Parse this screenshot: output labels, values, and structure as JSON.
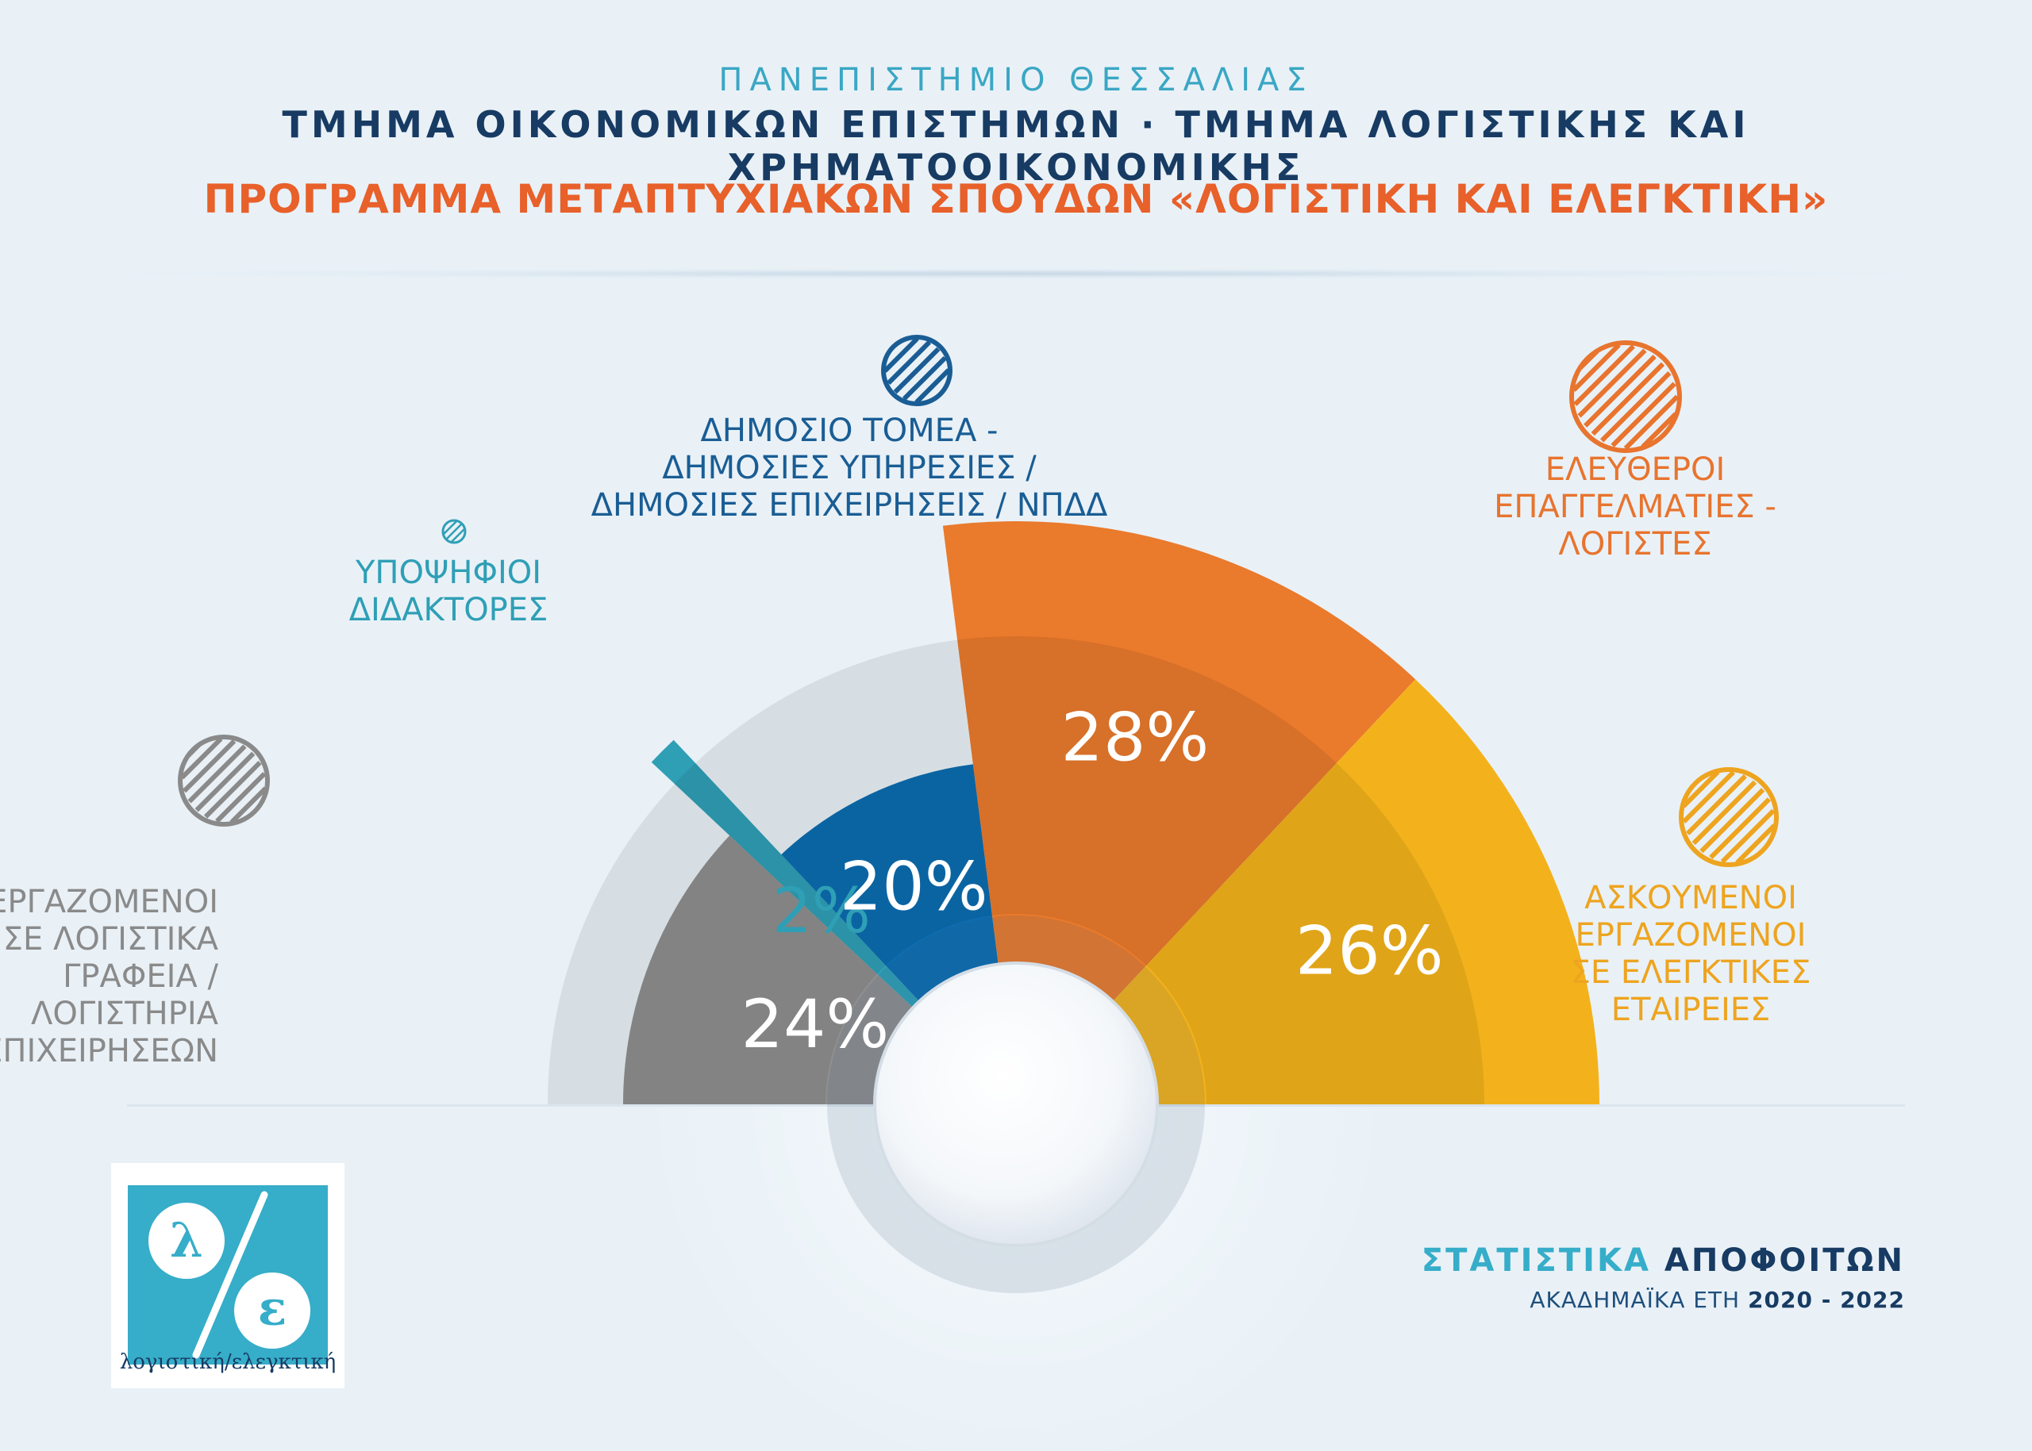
{
  "header": {
    "university": "ΠΑΝΕΠΙΣΤΗΜΙΟ ΘΕΣΣΑΛΙΑΣ",
    "departments": "ΤΜΗΜΑ ΟΙΚΟΝΟΜΙΚΩΝ ΕΠΙΣΤΗΜΩΝ · ΤΜΗΜΑ ΛΟΓΙΣΤΙΚΗΣ ΚΑΙ ΧΡΗΜΑΤΟΟΙΚΟΝΟΜΙΚΗΣ",
    "program": "ΠΡΟΓΡΑΜΜΑ ΜΕΤΑΠΤΥΧΙΑΚΩΝ ΣΠΟΥΔΩΝ «ΛΟΓΙΣΤΙΚΗ ΚΑΙ ΕΛΕΓΚΤΙΚΗ»"
  },
  "chart_data": {
    "type": "pie",
    "layout": "semicircle",
    "unit": "%",
    "slices": [
      {
        "label": [
          "ΕΡΓΑΖΟΜΕΝΟΙ",
          "ΣΕ ΛΟΓΙΣΤΙΚΑ",
          "ΓΡΑΦΕΙΑ /",
          "ΛΟΓΙΣΤΗΡΙΑ",
          "ΕΠΙΧΕΙΡΗΣΕΩΝ"
        ],
        "value": 24,
        "value_label": "24%",
        "color": "#8f8f8f",
        "label_color": "#8a8a8a"
      },
      {
        "label": [
          "ΥΠΟΨΗΦΙΟΙ",
          "ΔΙΔΑΚΤΟΡΕΣ"
        ],
        "value": 2,
        "value_label": "2%",
        "color": "#2f9fb6",
        "label_color": "#2f9fb6"
      },
      {
        "label": [
          "ΔΗΜΟΣΙΟ ΤΟΜΕΑ -",
          "ΔΗΜΟΣΙΕΣ ΥΠΗΡΕΣΙΕΣ /",
          "ΔΗΜΟΣΙΕΣ ΕΠΙΧΕΙΡΗΣΕΙΣ / ΝΠΔΔ"
        ],
        "value": 20,
        "value_label": "20%",
        "color": "#0d6db0",
        "label_color": "#1a5d94"
      },
      {
        "label": [
          "ΕΛΕΥΘΕΡΟΙ",
          "ΕΠΑΓΓΕΛΜΑΤΙΕΣ -",
          "ΛΟΓΙΣΤΕΣ"
        ],
        "value": 28,
        "value_label": "28%",
        "color": "#ea7a2c",
        "label_color": "#e8742e"
      },
      {
        "label": [
          "ΑΣΚΟΥΜΕΝΟΙ",
          "ΕΡΓΑΖΟΜΕΝΟΙ",
          "ΣΕ ΕΛΕΓΚΤΙΚΕΣ",
          "ΕΤΑΙΡΕΙΕΣ"
        ],
        "value": 26,
        "value_label": "26%",
        "color": "#f3b21c",
        "label_color": "#eea41f"
      }
    ]
  },
  "logo": {
    "letter_left": "λ",
    "letter_right": "ε",
    "tagline": "λογιστική/ελεγκτική"
  },
  "footer": {
    "title_part1": "ΣΤΑΤΙΣΤΙΚΑ",
    "title_part2": "ΑΠΟΦΟΙΤΩΝ",
    "subtitle": "ΑΚΑΔΗΜΑΪΚΑ ΕΤΗ",
    "years": "2020 - 2022"
  }
}
